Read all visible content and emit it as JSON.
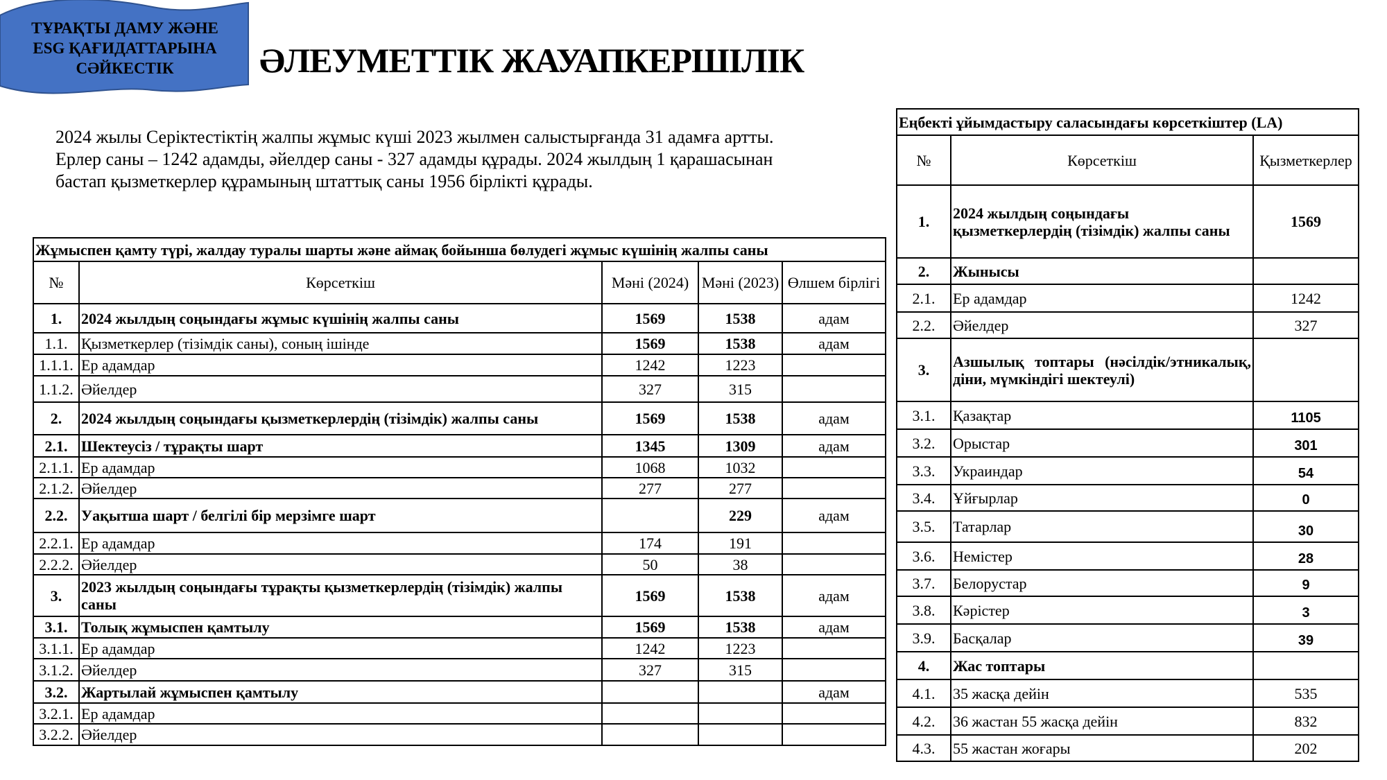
{
  "banner": {
    "lines": [
      "ТҰРАҚТЫ ДАМУ ЖӘНЕ",
      "ESG ҚАҒИДАТТАРЫНА",
      "СӘЙКЕСТІК"
    ],
    "color": "#4472C4"
  },
  "title": "ӘЛЕУМЕТТІК ЖАУАПКЕРШІЛІК",
  "intro": [
    "2024 жылы Серіктестіктің жалпы жұмыс күші 2023 жылмен салыстырғанда 31 адамға артты.",
    "Ерлер саны – 1242 адамды, әйелдер саны - 327 адамды құрады. 2024 жылдың 1 қарашасынан",
    "бастап қызметкерлер құрамының штаттық саны 1956 бірлікті құрады."
  ],
  "left_table": {
    "title": "Жұмыспен қамту түрі, жалдау туралы шарты және аймақ бойынша бөлудегі жұмыс күшінің жалпы саны",
    "headers": [
      "№",
      "Көрсеткіш",
      "Мәні (2024)",
      "Мәні (2023)",
      "Өлшем бірлігі"
    ],
    "rows": [
      {
        "no": "1.",
        "label": "2024 жылдың соңындағы жұмыс күшінің жалпы саны",
        "v2024": "1569",
        "v2023": "1538",
        "unit": "адам",
        "bold": true
      },
      {
        "no": "1.1.",
        "label": "Қызметкерлер (тізімдік саны), соның ішінде",
        "v2024": "1569",
        "v2023": "1538",
        "unit": "адам",
        "bold": false,
        "bold_values": true
      },
      {
        "no": "1.1.1.",
        "label": "Ер адамдар",
        "v2024": "1242",
        "v2023": "1223",
        "unit": "",
        "bold": false
      },
      {
        "no": "1.1.2.",
        "label": "Әйелдер",
        "v2024": "327",
        "v2023": "315",
        "unit": "",
        "bold": false
      },
      {
        "no": "2.",
        "label": "2024 жылдың соңындағы қызметкерлердің (тізімдік) жалпы саны",
        "v2024": "1569",
        "v2023": "1538",
        "unit": "адам",
        "bold": true
      },
      {
        "no": "2.1.",
        "label": "Шектеусіз / тұрақты шарт",
        "v2024": "1345",
        "v2023": "1309",
        "unit": "адам",
        "bold": true
      },
      {
        "no": "2.1.1.",
        "label": "Ер адамдар",
        "v2024": "1068",
        "v2023": "1032",
        "unit": "",
        "bold": false
      },
      {
        "no": "2.1.2.",
        "label": "Әйелдер",
        "v2024": "277",
        "v2023": "277",
        "unit": "",
        "bold": false
      },
      {
        "no": "2.2.",
        "label": "Уақытша шарт / белгілі бір мерзімге шарт",
        "v2024": "",
        "v2023": "229",
        "unit": "адам",
        "bold": true
      },
      {
        "no": "2.2.1.",
        "label": "Ер адамдар",
        "v2024": "174",
        "v2023": "191",
        "unit": "",
        "bold": false
      },
      {
        "no": "2.2.2.",
        "label": "Әйелдер",
        "v2024": "50",
        "v2023": "38",
        "unit": "",
        "bold": false
      },
      {
        "no": "3.",
        "label": "2023 жылдың соңындағы тұрақты қызметкерлердің (тізімдік) жалпы саны",
        "v2024": "1569",
        "v2023": "1538",
        "unit": "адам",
        "bold": true
      },
      {
        "no": "3.1.",
        "label": "Толық жұмыспен қамтылу",
        "v2024": "1569",
        "v2023": "1538",
        "unit": "адам",
        "bold": true
      },
      {
        "no": "3.1.1.",
        "label": "Ер адамдар",
        "v2024": "1242",
        "v2023": "1223",
        "unit": "",
        "bold": false
      },
      {
        "no": "3.1.2.",
        "label": "Әйелдер",
        "v2024": "327",
        "v2023": "315",
        "unit": "",
        "bold": false
      },
      {
        "no": "3.2.",
        "label": "Жартылай жұмыспен қамтылу",
        "v2024": "",
        "v2023": "",
        "unit": "адам",
        "bold": true
      },
      {
        "no": "3.2.1.",
        "label": "Ер адамдар",
        "v2024": "",
        "v2023": "",
        "unit": "",
        "bold": false
      },
      {
        "no": "3.2.2.",
        "label": "Әйелдер",
        "v2024": "",
        "v2023": "",
        "unit": "",
        "bold": false
      }
    ]
  },
  "right_table": {
    "title": "Еңбекті ұйымдастыру саласындағы көрсеткіштер (LA)",
    "headers": [
      "№",
      "Көрсеткіш",
      "Қызметкерлер"
    ],
    "rows": [
      {
        "no": "1.",
        "label": "2024 жылдың соңындағы қызметкерлердің (тізімдік) жалпы саны",
        "value": "1569",
        "bold": true
      },
      {
        "no": "2.",
        "label": "Жынысы",
        "value": "",
        "bold": true
      },
      {
        "no": "2.1.",
        "label": "Ер адамдар",
        "value": "1242",
        "bold": false
      },
      {
        "no": "2.2.",
        "label": "Әйелдер",
        "value": "327",
        "bold": false
      },
      {
        "no": "3.",
        "label": "Азшылық топтары (нәсілдік/этникалық, діни, мүмкіндігі шектеулі)",
        "value": "",
        "bold": true
      },
      {
        "no": "3.1.",
        "label": "Қазақтар",
        "value": "1105",
        "bold": false,
        "sans_value": true
      },
      {
        "no": "3.2.",
        "label": "Орыстар",
        "value": "301",
        "bold": false,
        "sans_value": true
      },
      {
        "no": "3.3.",
        "label": "Украиндар",
        "value": "54",
        "bold": false,
        "sans_value": true
      },
      {
        "no": "3.4.",
        "label": "Ұйғырлар",
        "value": "0",
        "bold": false,
        "sans_value": true
      },
      {
        "no": "3.5.",
        "label": "Татарлар",
        "value": "30",
        "bold": false,
        "sans_value": true
      },
      {
        "no": "3.6.",
        "label": "Немістер",
        "value": "28",
        "bold": false,
        "sans_value": true
      },
      {
        "no": "3.7.",
        "label": "Белорустар",
        "value": "9",
        "bold": false,
        "sans_value": true
      },
      {
        "no": "3.8.",
        "label": "Кәрістер",
        "value": "3",
        "bold": false,
        "sans_value": true
      },
      {
        "no": "3.9.",
        "label": "Басқалар",
        "value": "39",
        "bold": false,
        "sans_value": true
      },
      {
        "no": "4.",
        "label": "Жас топтары",
        "value": "",
        "bold": true
      },
      {
        "no": "4.1.",
        "label": "35 жасқа дейін",
        "value": "535",
        "bold": false
      },
      {
        "no": "4.2.",
        "label": "36 жастан 55 жасқа дейін",
        "value": "832",
        "bold": false
      },
      {
        "no": "4.3.",
        "label": "55 жастан жоғары",
        "value": "202",
        "bold": false
      }
    ]
  }
}
